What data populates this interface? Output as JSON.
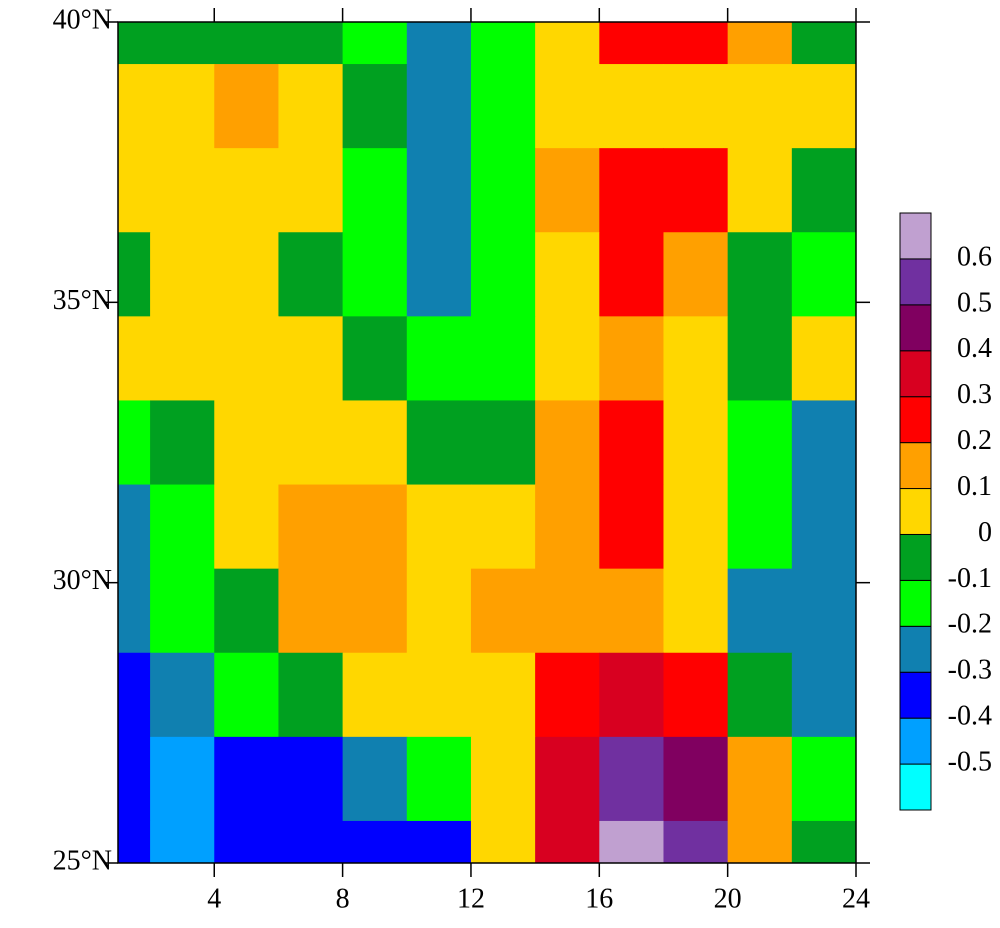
{
  "chart_data": {
    "type": "contour",
    "x": [
      1,
      3,
      5,
      7,
      9,
      11,
      13,
      15,
      17,
      19,
      21,
      23
    ],
    "y": [
      40,
      38.5,
      37,
      35.5,
      34,
      32.5,
      31,
      29.5,
      28,
      26.5,
      25
    ],
    "z": [
      [
        -0.05,
        -0.05,
        -0.05,
        -0.05,
        -0.15,
        -0.25,
        -0.15,
        0.05,
        0.25,
        0.25,
        0.15,
        -0.05
      ],
      [
        0.05,
        0.05,
        0.15,
        0.05,
        -0.05,
        -0.25,
        -0.15,
        0.05,
        0.05,
        0.05,
        0.05,
        0.05
      ],
      [
        0.05,
        0.05,
        0.05,
        0.05,
        -0.15,
        -0.25,
        -0.15,
        0.15,
        0.25,
        0.25,
        0.05,
        -0.05
      ],
      [
        -0.05,
        0.05,
        0.05,
        -0.05,
        -0.15,
        -0.25,
        -0.15,
        0.05,
        0.25,
        0.15,
        -0.05,
        -0.15
      ],
      [
        0.05,
        0.05,
        0.05,
        0.05,
        -0.05,
        -0.15,
        -0.15,
        0.05,
        0.15,
        0.05,
        -0.05,
        0.05
      ],
      [
        -0.15,
        -0.05,
        0.05,
        0.05,
        0.05,
        -0.05,
        -0.05,
        0.15,
        0.25,
        0.05,
        -0.15,
        -0.25
      ],
      [
        -0.25,
        -0.15,
        0.05,
        0.15,
        0.15,
        0.05,
        0.05,
        0.15,
        0.25,
        0.05,
        -0.15,
        -0.25
      ],
      [
        -0.25,
        -0.15,
        -0.05,
        0.15,
        0.15,
        0.05,
        0.15,
        0.15,
        0.15,
        0.05,
        -0.25,
        -0.25
      ],
      [
        -0.35,
        -0.25,
        -0.15,
        -0.05,
        0.05,
        0.05,
        0.05,
        0.25,
        0.35,
        0.25,
        -0.05,
        -0.25
      ],
      [
        -0.35,
        -0.45,
        -0.35,
        -0.35,
        -0.25,
        -0.15,
        0.05,
        0.35,
        0.55,
        0.45,
        0.15,
        -0.15
      ],
      [
        -0.35,
        -0.45,
        -0.35,
        -0.35,
        -0.35,
        -0.35,
        0.05,
        0.35,
        0.65,
        0.55,
        0.15,
        -0.05
      ]
    ],
    "levels": [
      -0.5,
      -0.4,
      -0.3,
      -0.2,
      -0.1,
      0,
      0.1,
      0.2,
      0.3,
      0.4,
      0.5,
      0.6
    ],
    "colors": [
      "#00ffff",
      "#00a0ff",
      "#0000ff",
      "#1080b0",
      "#00ff00",
      "#00a020",
      "#ffd700",
      "#ffa000",
      "#ff0000",
      "#d80020",
      "#800060",
      "#7030a0",
      "#c0a0d0"
    ],
    "xlim": [
      1,
      24
    ],
    "ylim": [
      25,
      40
    ],
    "xticks": [
      4,
      8,
      12,
      16,
      20,
      24
    ],
    "yticks": [
      {
        "value": 25,
        "label": "25°N"
      },
      {
        "value": 30,
        "label": "30°N"
      },
      {
        "value": 35,
        "label": "35°N"
      },
      {
        "value": 40,
        "label": "40°N"
      }
    ]
  }
}
